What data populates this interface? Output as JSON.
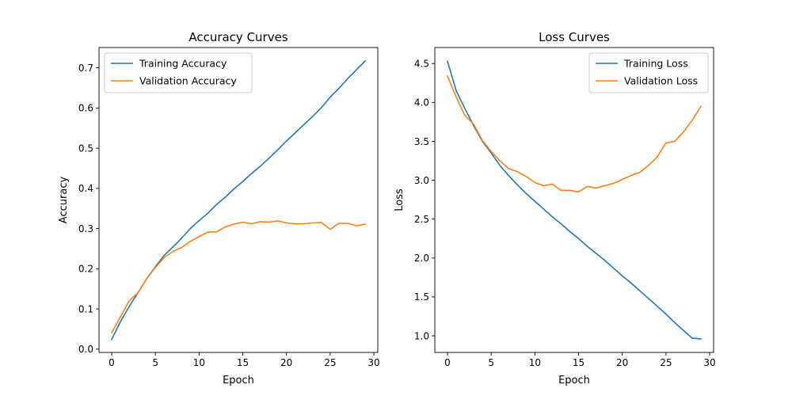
{
  "chart_data": [
    {
      "type": "line",
      "title": "Accuracy Curves",
      "xlabel": "Epoch",
      "ylabel": "Accuracy",
      "xlim": [
        -1.45,
        30.45
      ],
      "ylim": [
        -0.0083,
        0.7506
      ],
      "xticks": [
        0,
        5,
        10,
        15,
        20,
        25,
        30
      ],
      "yticks": [
        0.0,
        0.1,
        0.2,
        0.3,
        0.4,
        0.5,
        0.6,
        0.7
      ],
      "ytick_labels": [
        "0.0",
        "0.1",
        "0.2",
        "0.3",
        "0.4",
        "0.5",
        "0.6",
        "0.7"
      ],
      "legend_position": "upper-left",
      "grid": false,
      "x": [
        0,
        1,
        2,
        3,
        4,
        5,
        6,
        7,
        8,
        9,
        10,
        11,
        12,
        13,
        14,
        15,
        16,
        17,
        18,
        19,
        20,
        21,
        22,
        23,
        24,
        25,
        26,
        27,
        28,
        29
      ],
      "series": [
        {
          "name": "Training Accuracy",
          "color": "#1f77b4",
          "values": [
            0.024,
            0.068,
            0.106,
            0.14,
            0.175,
            0.205,
            0.233,
            0.254,
            0.276,
            0.3,
            0.32,
            0.338,
            0.36,
            0.378,
            0.399,
            0.417,
            0.437,
            0.455,
            0.475,
            0.496,
            0.518,
            0.538,
            0.559,
            0.579,
            0.601,
            0.627,
            0.649,
            0.673,
            0.695,
            0.717
          ]
        },
        {
          "name": "Validation Accuracy",
          "color": "#ff7f0e",
          "values": [
            0.041,
            0.08,
            0.12,
            0.14,
            0.175,
            0.203,
            0.228,
            0.243,
            0.253,
            0.268,
            0.28,
            0.291,
            0.292,
            0.304,
            0.311,
            0.316,
            0.312,
            0.317,
            0.316,
            0.319,
            0.314,
            0.312,
            0.312,
            0.314,
            0.315,
            0.298,
            0.313,
            0.313,
            0.307,
            0.311
          ]
        }
      ]
    },
    {
      "type": "line",
      "title": "Loss Curves",
      "xlabel": "Epoch",
      "ylabel": "Loss",
      "xlim": [
        -1.45,
        30.45
      ],
      "ylim": [
        0.7865,
        4.706
      ],
      "xticks": [
        0,
        5,
        10,
        15,
        20,
        25,
        30
      ],
      "yticks": [
        1.0,
        1.5,
        2.0,
        2.5,
        3.0,
        3.5,
        4.0,
        4.5
      ],
      "ytick_labels": [
        "1.0",
        "1.5",
        "2.0",
        "2.5",
        "3.0",
        "3.5",
        "4.0",
        "4.5"
      ],
      "legend_position": "upper-right",
      "grid": false,
      "x": [
        0,
        1,
        2,
        3,
        4,
        5,
        6,
        7,
        8,
        9,
        10,
        11,
        12,
        13,
        14,
        15,
        16,
        17,
        18,
        19,
        20,
        21,
        22,
        23,
        24,
        25,
        26,
        27,
        28,
        29
      ],
      "series": [
        {
          "name": "Training Loss",
          "color": "#1f77b4",
          "values": [
            4.53,
            4.15,
            3.92,
            3.7,
            3.5,
            3.35,
            3.19,
            3.06,
            2.94,
            2.83,
            2.73,
            2.63,
            2.53,
            2.44,
            2.34,
            2.25,
            2.15,
            2.06,
            1.97,
            1.87,
            1.77,
            1.68,
            1.58,
            1.48,
            1.38,
            1.28,
            1.17,
            1.07,
            0.97,
            0.96
          ]
        },
        {
          "name": "Validation Loss",
          "color": "#ff7f0e",
          "values": [
            4.34,
            4.07,
            3.83,
            3.72,
            3.51,
            3.37,
            3.25,
            3.15,
            3.11,
            3.05,
            2.97,
            2.93,
            2.95,
            2.87,
            2.87,
            2.85,
            2.92,
            2.9,
            2.93,
            2.96,
            3.01,
            3.06,
            3.1,
            3.19,
            3.3,
            3.48,
            3.5,
            3.62,
            3.77,
            3.95
          ]
        }
      ]
    }
  ]
}
